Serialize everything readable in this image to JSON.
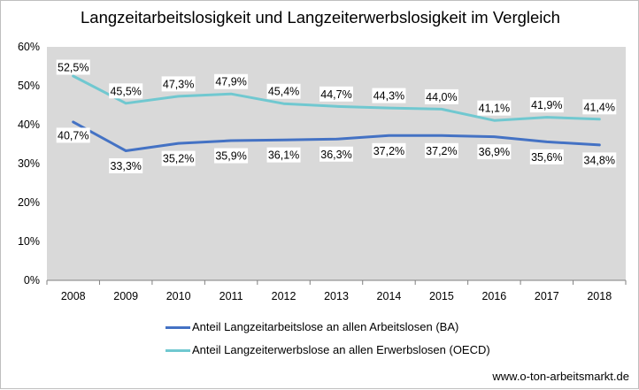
{
  "chart_data": {
    "type": "line",
    "title": "Langzeitarbeitslosigkeit und Langzeiterwerbslosigkeit im Vergleich",
    "categories": [
      "2008",
      "2009",
      "2010",
      "2011",
      "2012",
      "2013",
      "2014",
      "2015",
      "2016",
      "2017",
      "2018"
    ],
    "ylim": [
      0,
      60
    ],
    "yticks": [
      0,
      10,
      20,
      30,
      40,
      50,
      60
    ],
    "ytick_labels": [
      "0%",
      "10%",
      "20%",
      "30%",
      "40%",
      "50%",
      "60%"
    ],
    "grid": false,
    "legend_position": "bottom",
    "series": [
      {
        "name": "Anteil Langzeitarbeitslose an allen Arbeitslosen (BA)",
        "color": "#4472c4",
        "values": [
          40.7,
          33.3,
          35.2,
          35.9,
          36.1,
          36.3,
          37.2,
          37.2,
          36.9,
          35.6,
          34.8
        ],
        "labels": [
          "40,7%",
          "33,3%",
          "35,2%",
          "35,9%",
          "36,1%",
          "36,3%",
          "37,2%",
          "37,2%",
          "36,9%",
          "35,6%",
          "34,8%"
        ]
      },
      {
        "name": "Anteil Langzeiterwerbslose an allen Erwerbslosen (OECD)",
        "color": "#70c8d0",
        "values": [
          52.5,
          45.5,
          47.3,
          47.9,
          45.4,
          44.7,
          44.3,
          44.0,
          41.1,
          41.9,
          41.4
        ],
        "labels": [
          "52,5%",
          "45,5%",
          "47,3%",
          "47,9%",
          "45,4%",
          "44,7%",
          "44,3%",
          "44,0%",
          "41,1%",
          "41,9%",
          "41,4%"
        ]
      }
    ]
  },
  "source": "www.o-ton-arbeitsmarkt.de",
  "colors": {
    "plot_background": "#d9d9d9",
    "axis": "#808080"
  }
}
